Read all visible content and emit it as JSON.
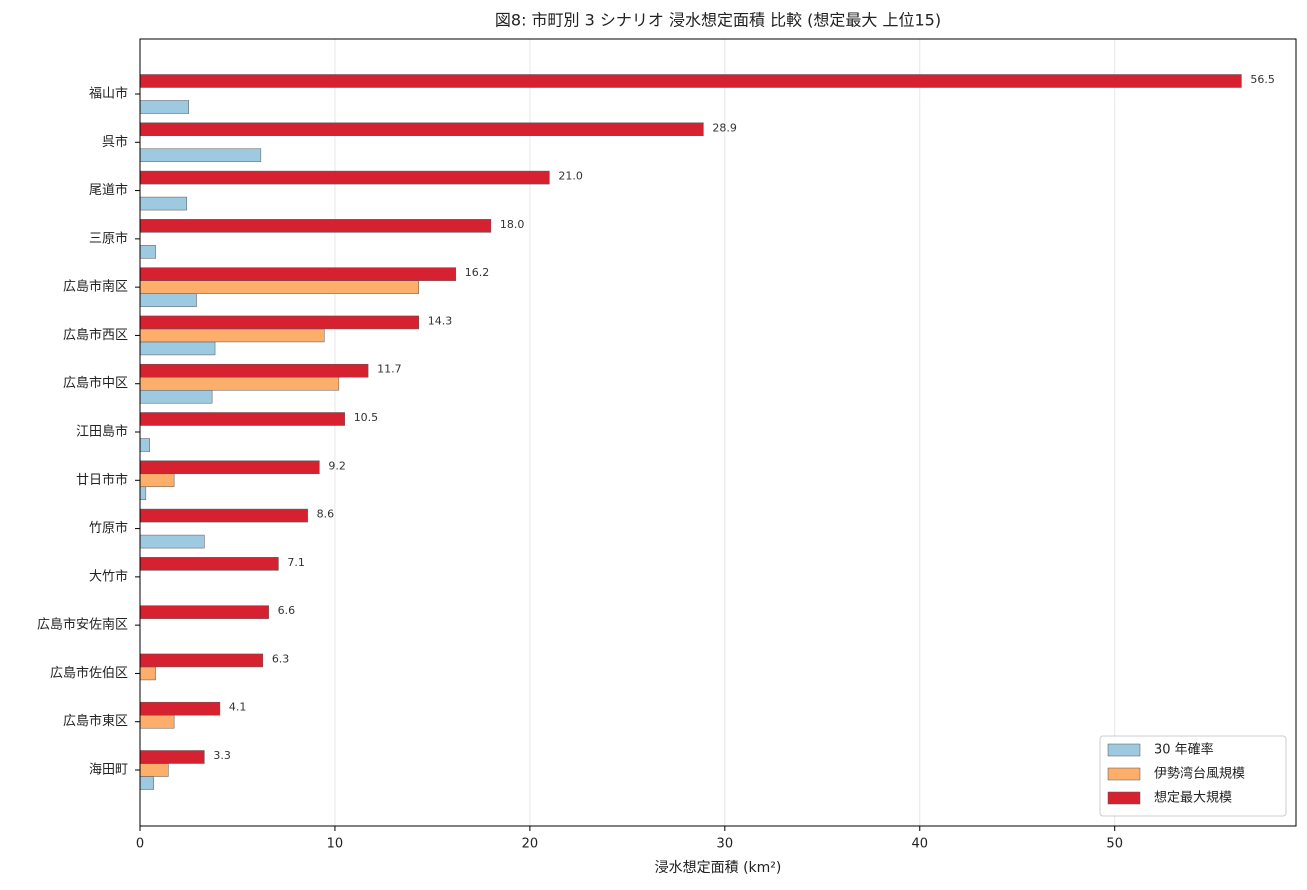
{
  "chart_data": {
    "type": "bar",
    "orientation": "horizontal",
    "title": "図8: 市町別 3 シナリオ 浸水想定面積 比較 (想定最大 上位15)",
    "x_label": "浸水想定面積 (km²)",
    "categories": [
      "福山市",
      "呉市",
      "尾道市",
      "三原市",
      "広島市南区",
      "広島市西区",
      "広島市中区",
      "江田島市",
      "廿日市市",
      "竹原市",
      "大竹市",
      "広島市安佐南区",
      "広島市佐伯区",
      "広島市東区",
      "海田町"
    ],
    "series": [
      {
        "name": "30 年確率",
        "color": "#9ecae1",
        "values": [
          2.5,
          6.2,
          2.4,
          0.8,
          2.9,
          3.85,
          3.7,
          0.5,
          0.3,
          3.3,
          0,
          0,
          0,
          0,
          0.7
        ]
      },
      {
        "name": "伊勢湾台風規模",
        "color": "#fdae6b",
        "values": [
          0,
          0,
          0,
          0,
          14.3,
          9.45,
          10.2,
          0,
          1.75,
          0,
          0,
          0,
          0.8,
          1.75,
          1.45
        ]
      },
      {
        "name": "想定最大規模",
        "color": "#d62230",
        "values": [
          56.5,
          28.9,
          21.0,
          18.0,
          16.2,
          14.3,
          11.7,
          10.5,
          9.2,
          8.6,
          7.1,
          6.6,
          6.3,
          4.1,
          3.3
        ],
        "value_labels": [
          "56.5",
          "28.9",
          "21.0",
          "18.0",
          "16.2",
          "14.3",
          "11.7",
          "10.5",
          "9.2",
          "8.6",
          "7.1",
          "6.6",
          "6.3",
          "4.1",
          "3.3"
        ]
      }
    ],
    "xlim": [
      0,
      59.3
    ],
    "xticks": [
      0,
      10,
      20,
      30,
      40,
      50
    ],
    "grid": true,
    "legend": "lower right"
  }
}
